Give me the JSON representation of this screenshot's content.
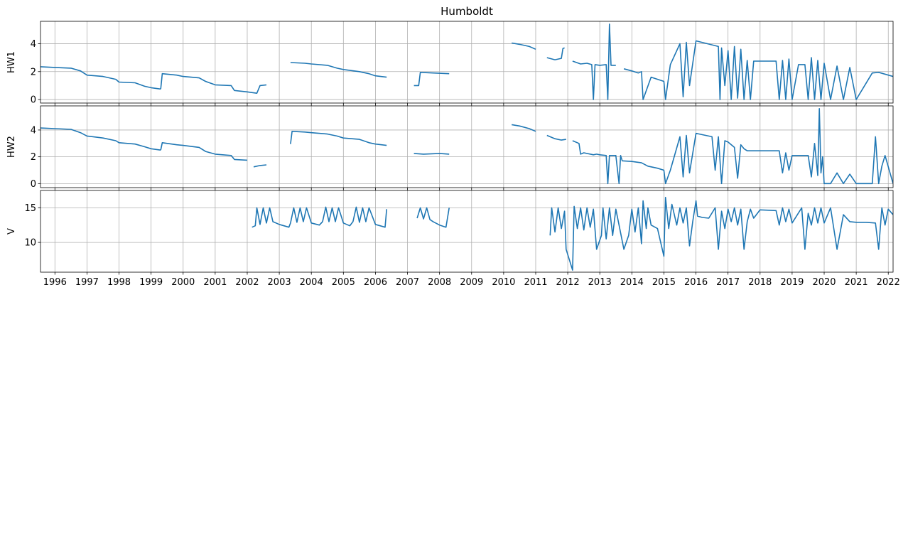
{
  "chart_data": {
    "type": "line",
    "title": "Humboldt",
    "color": "#1f77b4",
    "grid": true,
    "xlim": [
      1995.55,
      2022.15
    ],
    "x_ticks": [
      1996,
      1997,
      1998,
      1999,
      2000,
      2001,
      2002,
      2003,
      2004,
      2005,
      2006,
      2007,
      2008,
      2009,
      2010,
      2011,
      2012,
      2013,
      2014,
      2015,
      2016,
      2017,
      2018,
      2019,
      2020,
      2021,
      2022
    ],
    "x_tick_labels": [
      "1996",
      "1997",
      "1998",
      "1999",
      "2000",
      "2001",
      "2002",
      "2003",
      "2004",
      "2005",
      "2006",
      "2007",
      "2008",
      "2009",
      "2010",
      "2011",
      "2012",
      "2013",
      "2014",
      "2015",
      "2016",
      "2017",
      "2018",
      "2019",
      "2020",
      "2021",
      "2022"
    ],
    "panels": [
      {
        "ylabel": "HW1",
        "ylim": [
          -0.25,
          5.6
        ],
        "y_ticks": [
          0,
          2,
          4
        ],
        "y_tick_labels": [
          "0",
          "2",
          "4"
        ],
        "segments": [
          {
            "x": [
              1995.55,
              1996.0,
              1996.5,
              1996.8,
              1997.0,
              1997.5,
              1997.9,
              1998.0,
              1998.5,
              1998.8,
              1999.0,
              1999.3
            ],
            "y": [
              2.35,
              2.3,
              2.25,
              2.05,
              1.75,
              1.65,
              1.45,
              1.25,
              1.2,
              0.95,
              0.85,
              0.75
            ]
          },
          {
            "x": [
              1999.3,
              1999.35,
              1999.8,
              2000.0,
              2000.5,
              2000.7,
              2001.0,
              2001.5,
              2001.6,
              2002.0,
              2002.3,
              2002.4,
              2002.6
            ],
            "y": [
              0.75,
              1.85,
              1.75,
              1.65,
              1.55,
              1.3,
              1.05,
              1.0,
              0.65,
              0.55,
              0.45,
              1.0,
              1.05
            ]
          },
          {
            "x": [
              2003.35,
              2003.8,
              2004.0,
              2004.5,
              2004.8,
              2005.0,
              2005.5,
              2005.8,
              2006.0,
              2006.35
            ],
            "y": [
              2.65,
              2.6,
              2.55,
              2.45,
              2.25,
              2.15,
              2.0,
              1.85,
              1.7,
              1.6
            ]
          },
          {
            "x": [
              2007.2,
              2007.35,
              2007.4,
              2007.8,
              2008.3
            ],
            "y": [
              1.0,
              1.0,
              1.95,
              1.9,
              1.85
            ]
          },
          {
            "x": [
              2010.25,
              2010.5,
              2010.8,
              2011.0
            ],
            "y": [
              4.05,
              3.95,
              3.8,
              3.6
            ]
          },
          {
            "x": [
              2011.35,
              2011.6,
              2011.8,
              2011.85,
              2011.9
            ],
            "y": [
              3.0,
              2.85,
              2.95,
              3.65,
              3.7
            ]
          },
          {
            "x": [
              2012.15,
              2012.4,
              2012.6,
              2012.75,
              2012.8,
              2012.85,
              2013.0,
              2013.2,
              2013.25,
              2013.3,
              2013.35,
              2013.5
            ],
            "y": [
              2.75,
              2.55,
              2.6,
              2.5,
              0.0,
              2.5,
              2.45,
              2.5,
              0.0,
              5.4,
              2.45,
              2.45
            ]
          },
          {
            "x": [
              2013.75,
              2014.0,
              2014.2,
              2014.3,
              2014.35,
              2014.6,
              2015.0,
              2015.05,
              2015.2,
              2015.5,
              2015.6,
              2015.7,
              2015.8,
              2016.0,
              2016.7,
              2016.75,
              2016.8,
              2016.9,
              2017.0,
              2017.1,
              2017.2,
              2017.3,
              2017.4,
              2017.5,
              2017.6,
              2017.7,
              2017.8,
              2018.0,
              2018.5,
              2018.6,
              2018.7,
              2018.8,
              2018.9,
              2019.0,
              2019.2,
              2019.4,
              2019.5,
              2019.6,
              2019.7,
              2019.8,
              2019.9,
              2020.0,
              2020.2,
              2020.4,
              2020.6,
              2020.8,
              2021.0,
              2021.5,
              2021.7,
              2022.15
            ],
            "y": [
              2.2,
              2.05,
              1.9,
              2.0,
              0.0,
              1.6,
              1.3,
              0.0,
              2.5,
              4.0,
              0.2,
              4.1,
              1.0,
              4.2,
              3.8,
              0.0,
              3.7,
              1.0,
              3.5,
              0.0,
              3.8,
              0.1,
              3.6,
              0.0,
              2.8,
              0.0,
              2.75,
              2.75,
              2.75,
              0.0,
              2.8,
              0.0,
              2.9,
              0.0,
              2.5,
              2.5,
              0.0,
              3.0,
              0.0,
              2.8,
              0.0,
              2.6,
              0.0,
              2.4,
              0.0,
              2.3,
              0.0,
              1.9,
              1.95,
              1.65
            ]
          }
        ]
      },
      {
        "ylabel": "HW2",
        "ylim": [
          -0.3,
          5.8
        ],
        "y_ticks": [
          0,
          2,
          4
        ],
        "y_tick_labels": [
          "0",
          "2",
          "4"
        ],
        "segments": [
          {
            "x": [
              1995.55,
              1996.0,
              1996.5,
              1996.8,
              1997.0,
              1997.5,
              1997.9,
              1998.0,
              1998.5,
              1998.8,
              1999.0,
              1999.3
            ],
            "y": [
              4.15,
              4.1,
              4.05,
              3.8,
              3.55,
              3.4,
              3.2,
              3.05,
              2.95,
              2.75,
              2.6,
              2.5
            ]
          },
          {
            "x": [
              1999.3,
              1999.35,
              1999.8,
              2000.0,
              2000.5,
              2000.7,
              2001.0,
              2001.5,
              2001.6,
              2002.0
            ],
            "y": [
              2.5,
              3.05,
              2.9,
              2.85,
              2.7,
              2.4,
              2.2,
              2.1,
              1.8,
              1.75
            ]
          },
          {
            "x": [
              2002.2,
              2002.4,
              2002.6
            ],
            "y": [
              1.25,
              1.35,
              1.4
            ]
          },
          {
            "x": [
              2003.35,
              2003.4,
              2003.8,
              2004.0,
              2004.5,
              2004.8,
              2005.0,
              2005.5,
              2005.8,
              2006.0,
              2006.35
            ],
            "y": [
              2.95,
              3.9,
              3.85,
              3.8,
              3.7,
              3.55,
              3.4,
              3.3,
              3.05,
              2.95,
              2.85
            ]
          },
          {
            "x": [
              2007.2,
              2007.5,
              2008.0,
              2008.3
            ],
            "y": [
              2.25,
              2.2,
              2.25,
              2.2
            ]
          },
          {
            "x": [
              2010.25,
              2010.5,
              2010.8,
              2011.0
            ],
            "y": [
              4.4,
              4.3,
              4.1,
              3.9
            ]
          },
          {
            "x": [
              2011.35,
              2011.6,
              2011.8,
              2011.95
            ],
            "y": [
              3.6,
              3.35,
              3.25,
              3.3
            ]
          },
          {
            "x": [
              2012.15,
              2012.35,
              2012.4,
              2012.5,
              2012.8,
              2012.9,
              2013.0,
              2013.2,
              2013.25,
              2013.3,
              2013.5,
              2013.6,
              2013.65,
              2013.7,
              2014.0,
              2014.3,
              2014.5,
              2014.8,
              2015.0,
              2015.05,
              2015.2,
              2015.5,
              2015.6,
              2015.7,
              2015.8,
              2016.0,
              2016.5,
              2016.6,
              2016.7,
              2016.8,
              2016.9,
              2017.0,
              2017.2,
              2017.3,
              2017.4,
              2017.5,
              2017.6,
              2018.0,
              2018.6,
              2018.7,
              2018.8,
              2018.9,
              2019.0,
              2019.5,
              2019.6,
              2019.7,
              2019.8,
              2019.85,
              2019.9,
              2019.95,
              2020.0,
              2020.2,
              2020.4,
              2020.6,
              2020.8,
              2021.0,
              2021.5,
              2021.6,
              2021.7,
              2021.8,
              2021.9,
              2022.15
            ],
            "y": [
              3.2,
              3.0,
              2.2,
              2.3,
              2.15,
              2.2,
              2.15,
              2.1,
              0.0,
              2.1,
              2.1,
              0.0,
              2.1,
              1.7,
              1.65,
              1.55,
              1.3,
              1.15,
              1.0,
              0.0,
              1.0,
              3.5,
              0.5,
              3.6,
              0.8,
              3.75,
              3.5,
              1.0,
              3.5,
              0.0,
              3.2,
              3.1,
              2.7,
              0.4,
              2.9,
              2.6,
              2.45,
              2.45,
              2.45,
              0.8,
              2.3,
              1.0,
              2.1,
              2.1,
              0.5,
              3.0,
              0.6,
              5.6,
              0.8,
              2.0,
              0.0,
              0.0,
              0.8,
              0.0,
              0.7,
              0.0,
              0.0,
              3.5,
              0.0,
              1.3,
              2.1,
              0.0
            ]
          }
        ]
      },
      {
        "ylabel": "V",
        "ylim": [
          5.7,
          17.5
        ],
        "y_ticks": [
          10,
          15
        ],
        "y_tick_labels": [
          "10",
          "15"
        ],
        "segments": [
          {
            "x": [
              2002.15,
              2002.25,
              2002.3,
              2002.4,
              2002.5,
              2002.6,
              2002.7,
              2002.8,
              2003.0,
              2003.3,
              2003.35,
              2003.45,
              2003.55,
              2003.65,
              2003.75,
              2003.85,
              2004.0,
              2004.25,
              2004.35,
              2004.45,
              2004.55,
              2004.65,
              2004.75,
              2004.85,
              2005.0,
              2005.2,
              2005.3,
              2005.4,
              2005.5,
              2005.6,
              2005.7,
              2005.8,
              2006.0,
              2006.3,
              2006.35
            ],
            "y": [
              12.2,
              12.4,
              15.0,
              12.6,
              15.0,
              12.8,
              15.0,
              13.0,
              12.6,
              12.2,
              12.8,
              15.0,
              12.9,
              15.0,
              13.0,
              15.0,
              12.8,
              12.5,
              13.0,
              15.1,
              13.0,
              15.0,
              13.0,
              15.0,
              12.8,
              12.4,
              13.0,
              15.1,
              12.9,
              15.0,
              13.0,
              15.0,
              12.6,
              12.2,
              14.8
            ]
          },
          {
            "x": [
              2007.3,
              2007.4,
              2007.5,
              2007.6,
              2007.7,
              2007.8,
              2008.0,
              2008.2,
              2008.3
            ],
            "y": [
              13.5,
              15.0,
              13.4,
              15.0,
              13.3,
              13.0,
              12.5,
              12.2,
              15.0
            ]
          },
          {
            "x": [
              2011.45,
              2011.5,
              2011.6,
              2011.7,
              2011.8,
              2011.9,
              2011.95,
              2012.15,
              2012.2,
              2012.3,
              2012.4,
              2012.5,
              2012.6,
              2012.7,
              2012.8,
              2012.9,
              2013.05,
              2013.1,
              2013.2,
              2013.3,
              2013.4,
              2013.5,
              2013.6,
              2013.75,
              2013.9,
              2014.0,
              2014.1,
              2014.2,
              2014.3,
              2014.35,
              2014.45,
              2014.5,
              2014.6,
              2014.8,
              2015.0,
              2015.05,
              2015.15,
              2015.25,
              2015.4,
              2015.5,
              2015.6,
              2015.7,
              2015.8,
              2015.9,
              2016.0,
              2016.05,
              2016.2,
              2016.4,
              2016.6,
              2016.7,
              2016.8,
              2016.9,
              2017.0,
              2017.1,
              2017.2,
              2017.3,
              2017.4,
              2017.5,
              2017.6,
              2017.7,
              2017.8,
              2018.0,
              2018.5,
              2018.6,
              2018.7,
              2018.8,
              2018.9,
              2019.0,
              2019.3,
              2019.4,
              2019.5,
              2019.6,
              2019.7,
              2019.8,
              2019.9,
              2020.0,
              2020.2,
              2020.4,
              2020.6,
              2020.8,
              2021.0,
              2021.3,
              2021.6,
              2021.7,
              2021.8,
              2021.9,
              2022.0,
              2022.15
            ],
            "y": [
              11.0,
              15.0,
              11.5,
              15.0,
              12.0,
              14.5,
              9.0,
              6.0,
              15.2,
              12.0,
              15.0,
              11.8,
              15.0,
              12.2,
              14.8,
              9.0,
              11.0,
              15.0,
              10.5,
              15.0,
              11.0,
              14.8,
              12.5,
              9.0,
              11.0,
              14.8,
              11.5,
              15.0,
              9.8,
              16.0,
              12.0,
              15.0,
              12.5,
              12.0,
              8.0,
              16.5,
              12.0,
              15.5,
              12.5,
              15.0,
              12.8,
              15.0,
              9.5,
              13.0,
              16.0,
              13.8,
              13.6,
              13.5,
              15.0,
              9.0,
              14.5,
              12.0,
              14.8,
              13.0,
              15.0,
              12.5,
              14.8,
              9.0,
              13.0,
              14.8,
              13.5,
              14.7,
              14.6,
              12.5,
              15.0,
              13.0,
              14.8,
              12.8,
              15.0,
              9.0,
              14.2,
              12.5,
              15.0,
              12.8,
              15.0,
              12.8,
              15.0,
              9.0,
              14.0,
              13.0,
              12.9,
              12.9,
              12.8,
              9.0,
              15.0,
              12.5,
              14.8,
              14.0
            ]
          }
        ]
      }
    ]
  }
}
